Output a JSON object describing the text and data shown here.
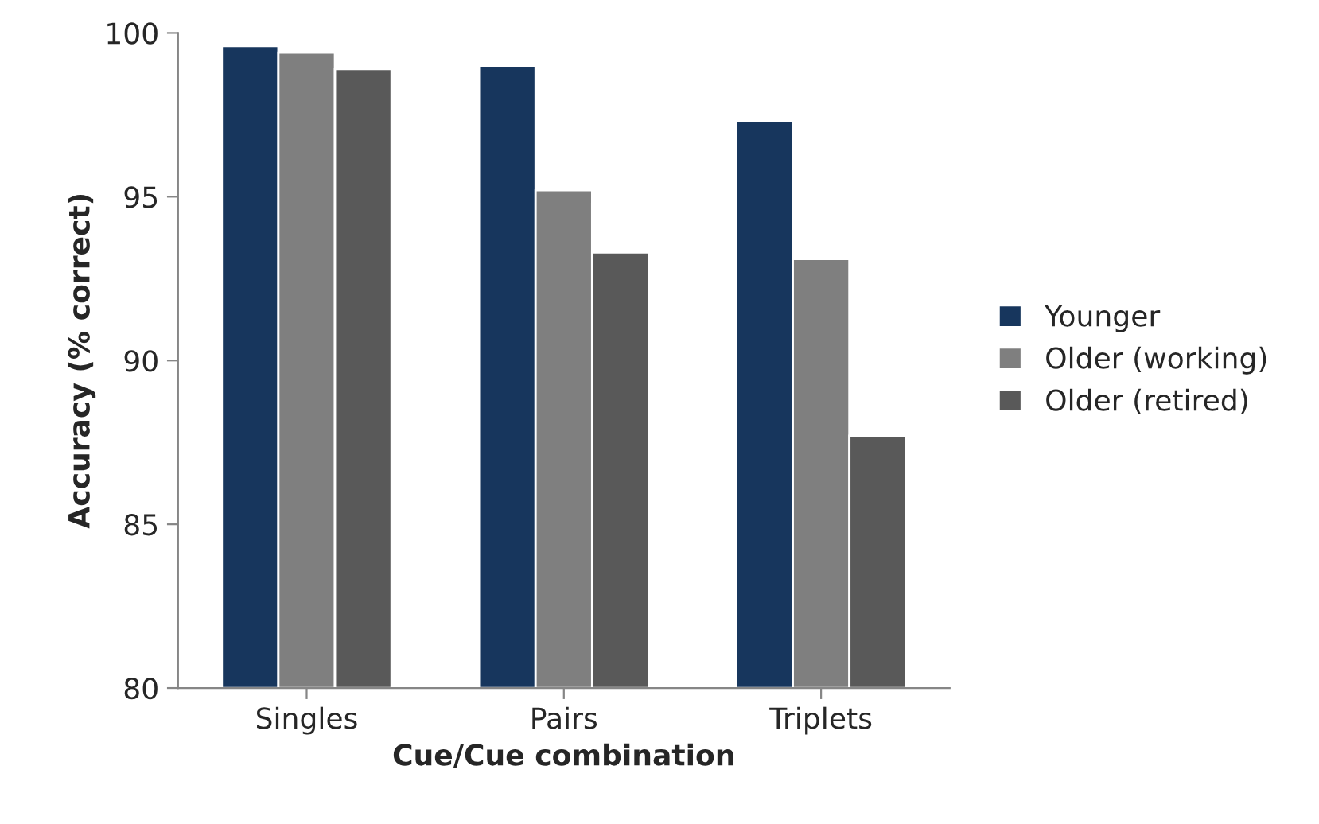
{
  "chart_data": {
    "type": "bar",
    "xlabel": "Cue/Cue combination",
    "ylabel": "Accuracy (% correct)",
    "categories": [
      "Singles",
      "Pairs",
      "Triplets"
    ],
    "series": [
      {
        "name": "Younger",
        "color": "#17365d",
        "values": [
          99.6,
          99.0,
          97.3
        ]
      },
      {
        "name": "Older (working)",
        "color": "#7f7f7f",
        "values": [
          99.4,
          95.2,
          93.1
        ]
      },
      {
        "name": "Older (retired)",
        "color": "#595959",
        "values": [
          98.9,
          93.3,
          87.7
        ]
      }
    ],
    "ylim": [
      80,
      100
    ],
    "yticks": [
      80,
      85,
      90,
      95,
      100
    ],
    "grid": false,
    "legend": "right"
  }
}
